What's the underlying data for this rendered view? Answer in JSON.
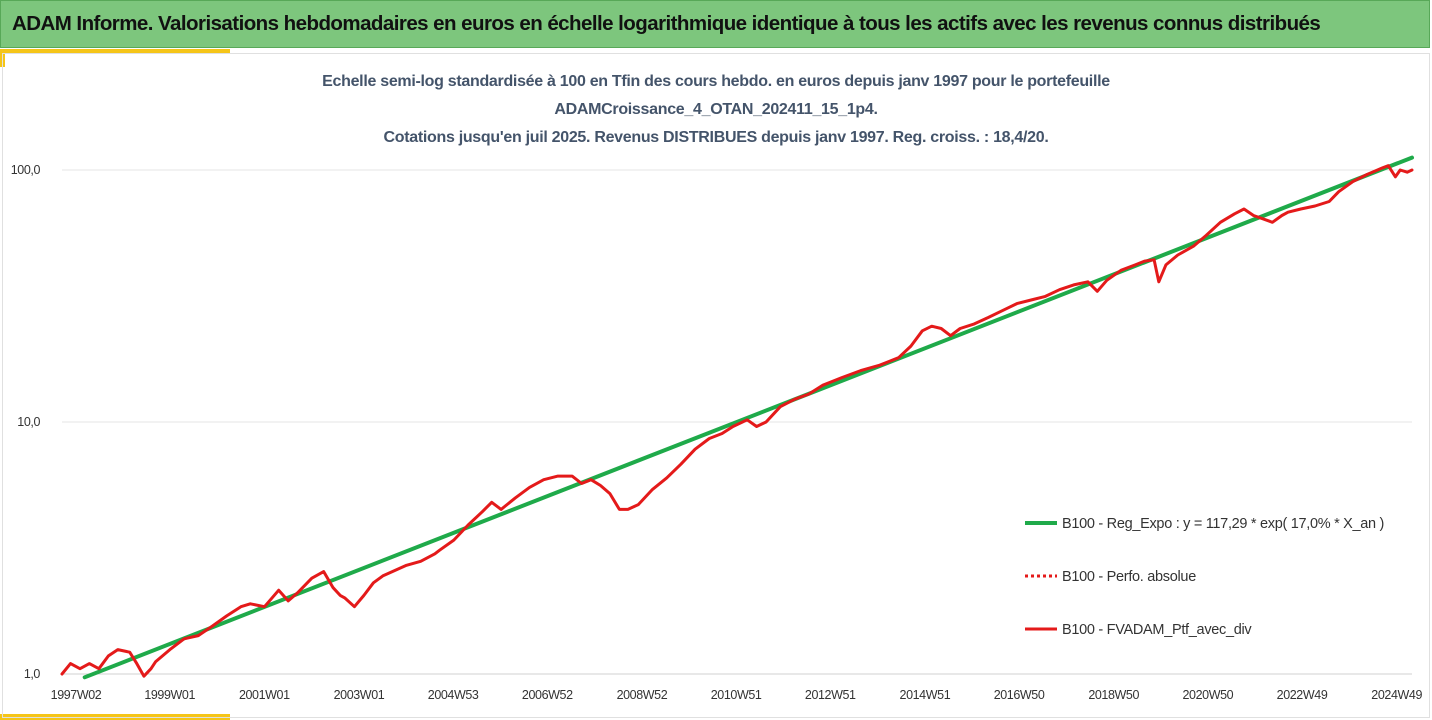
{
  "header": {
    "title": "ADAM Informe. Valorisations hebdomadaires en euros en échelle logarithmique identique à tous les actifs avec les revenus connus distribués"
  },
  "colors": {
    "header_bg": "#7dc67d",
    "accent": "#f5c518",
    "regression": "#1faa4a",
    "performance": "#e41a1a",
    "grid": "#e4e4e4"
  },
  "chart_data": {
    "type": "line",
    "title": [
      "Echelle semi-log standardisée à 100 en Tfin des cours hebdo.  en euros depuis janv 1997 pour le portefeuille",
      "ADAMCroissance_4_OTAN_202411_15_1p4.",
      "Cotations  jusqu'en juil 2025. Revenus DISTRIBUES depuis janv 1997. Reg. croiss. : 18,4/20."
    ],
    "y_scale": "log",
    "ylim": [
      1,
      100
    ],
    "y_ticks": [
      {
        "value": 1,
        "label": "1,0"
      },
      {
        "value": 10,
        "label": "10,0"
      },
      {
        "value": 100,
        "label": "100,0"
      }
    ],
    "xlim": [
      1997.02,
      2025.55
    ],
    "x_ticks": [
      {
        "x": 1997.02,
        "label": "1997W02"
      },
      {
        "x": 1999.0,
        "label": "1999W01"
      },
      {
        "x": 2001.0,
        "label": "2001W01"
      },
      {
        "x": 2003.0,
        "label": "2003W01"
      },
      {
        "x": 2004.99,
        "label": "2004W53"
      },
      {
        "x": 2006.98,
        "label": "2006W52"
      },
      {
        "x": 2008.98,
        "label": "2008W52"
      },
      {
        "x": 2010.97,
        "label": "2010W51"
      },
      {
        "x": 2012.96,
        "label": "2012W51"
      },
      {
        "x": 2014.96,
        "label": "2014W51"
      },
      {
        "x": 2016.95,
        "label": "2016W50"
      },
      {
        "x": 2018.95,
        "label": "2018W50"
      },
      {
        "x": 2020.94,
        "label": "2020W50"
      },
      {
        "x": 2022.93,
        "label": "2022W49"
      },
      {
        "x": 2024.93,
        "label": "2024W49"
      }
    ],
    "grid": {
      "horizontal": true,
      "vertical": false
    },
    "legend_position": "right",
    "series": [
      {
        "name": "B100 - Reg_Expo : y = 117,29 * exp( 17,0% *  X_an )",
        "style": "solid",
        "color": "#1faa4a",
        "points": [
          [
            1997.5,
            0.97
          ],
          [
            2025.55,
            112
          ]
        ]
      },
      {
        "name": "B100 - Perfo. absolue",
        "style": "dotted",
        "color": "#e41a1a",
        "points": []
      },
      {
        "name": "B100 - FVADAM_Ptf_avec_div",
        "style": "solid",
        "color": "#e41a1a",
        "points": [
          [
            1997.02,
            1.0
          ],
          [
            1997.2,
            1.1
          ],
          [
            1997.4,
            1.05
          ],
          [
            1997.6,
            1.1
          ],
          [
            1997.8,
            1.05
          ],
          [
            1998.0,
            1.18
          ],
          [
            1998.2,
            1.25
          ],
          [
            1998.45,
            1.22
          ],
          [
            1998.6,
            1.1
          ],
          [
            1998.75,
            0.98
          ],
          [
            1998.9,
            1.05
          ],
          [
            1999.0,
            1.12
          ],
          [
            1999.3,
            1.25
          ],
          [
            1999.6,
            1.38
          ],
          [
            1999.9,
            1.42
          ],
          [
            2000.2,
            1.55
          ],
          [
            2000.5,
            1.7
          ],
          [
            2000.8,
            1.85
          ],
          [
            2001.0,
            1.9
          ],
          [
            2001.3,
            1.85
          ],
          [
            2001.6,
            2.15
          ],
          [
            2001.8,
            1.95
          ],
          [
            2002.0,
            2.1
          ],
          [
            2002.3,
            2.4
          ],
          [
            2002.55,
            2.55
          ],
          [
            2002.75,
            2.2
          ],
          [
            2002.9,
            2.05
          ],
          [
            2003.0,
            2.0
          ],
          [
            2003.2,
            1.85
          ],
          [
            2003.4,
            2.05
          ],
          [
            2003.6,
            2.3
          ],
          [
            2003.8,
            2.45
          ],
          [
            2004.0,
            2.55
          ],
          [
            2004.3,
            2.7
          ],
          [
            2004.6,
            2.8
          ],
          [
            2004.9,
            3.0
          ],
          [
            2005.0,
            3.1
          ],
          [
            2005.3,
            3.4
          ],
          [
            2005.6,
            3.9
          ],
          [
            2005.9,
            4.4
          ],
          [
            2006.1,
            4.8
          ],
          [
            2006.3,
            4.5
          ],
          [
            2006.6,
            5.0
          ],
          [
            2006.9,
            5.5
          ],
          [
            2007.2,
            5.9
          ],
          [
            2007.5,
            6.1
          ],
          [
            2007.8,
            6.1
          ],
          [
            2008.0,
            5.7
          ],
          [
            2008.2,
            5.9
          ],
          [
            2008.4,
            5.6
          ],
          [
            2008.6,
            5.2
          ],
          [
            2008.8,
            4.5
          ],
          [
            2008.98,
            4.5
          ],
          [
            2009.2,
            4.7
          ],
          [
            2009.5,
            5.4
          ],
          [
            2009.8,
            6.0
          ],
          [
            2010.1,
            6.8
          ],
          [
            2010.4,
            7.8
          ],
          [
            2010.7,
            8.6
          ],
          [
            2010.97,
            9.0
          ],
          [
            2011.2,
            9.6
          ],
          [
            2011.5,
            10.2
          ],
          [
            2011.7,
            9.6
          ],
          [
            2011.9,
            10.0
          ],
          [
            2012.2,
            11.5
          ],
          [
            2012.5,
            12.3
          ],
          [
            2012.8,
            12.9
          ],
          [
            2013.1,
            14.0
          ],
          [
            2013.5,
            15.0
          ],
          [
            2013.9,
            16.0
          ],
          [
            2014.3,
            16.8
          ],
          [
            2014.7,
            18.0
          ],
          [
            2014.96,
            20.0
          ],
          [
            2015.2,
            23.0
          ],
          [
            2015.4,
            24.0
          ],
          [
            2015.6,
            23.5
          ],
          [
            2015.8,
            22.0
          ],
          [
            2016.0,
            23.5
          ],
          [
            2016.3,
            24.5
          ],
          [
            2016.6,
            26.0
          ],
          [
            2016.95,
            28.0
          ],
          [
            2017.2,
            29.5
          ],
          [
            2017.5,
            30.5
          ],
          [
            2017.8,
            31.5
          ],
          [
            2018.1,
            33.5
          ],
          [
            2018.4,
            35.0
          ],
          [
            2018.7,
            36.0
          ],
          [
            2018.9,
            33.0
          ],
          [
            2019.1,
            36.5
          ],
          [
            2019.4,
            40.0
          ],
          [
            2019.7,
            42.0
          ],
          [
            2019.9,
            43.5
          ],
          [
            2020.1,
            44.0
          ],
          [
            2020.2,
            36.0
          ],
          [
            2020.35,
            42.0
          ],
          [
            2020.6,
            46.0
          ],
          [
            2020.94,
            50.0
          ],
          [
            2021.2,
            55.0
          ],
          [
            2021.5,
            62.0
          ],
          [
            2021.8,
            67.0
          ],
          [
            2022.0,
            70.0
          ],
          [
            2022.2,
            66.0
          ],
          [
            2022.4,
            64.0
          ],
          [
            2022.6,
            62.0
          ],
          [
            2022.8,
            66.0
          ],
          [
            2022.93,
            68.0
          ],
          [
            2023.2,
            70.0
          ],
          [
            2023.5,
            72.0
          ],
          [
            2023.8,
            75.0
          ],
          [
            2024.0,
            82.0
          ],
          [
            2024.3,
            90.0
          ],
          [
            2024.6,
            96.0
          ],
          [
            2024.93,
            102.0
          ],
          [
            2025.05,
            104.0
          ],
          [
            2025.2,
            94.0
          ],
          [
            2025.3,
            100.0
          ],
          [
            2025.45,
            98.0
          ],
          [
            2025.55,
            100.0
          ]
        ]
      }
    ]
  }
}
